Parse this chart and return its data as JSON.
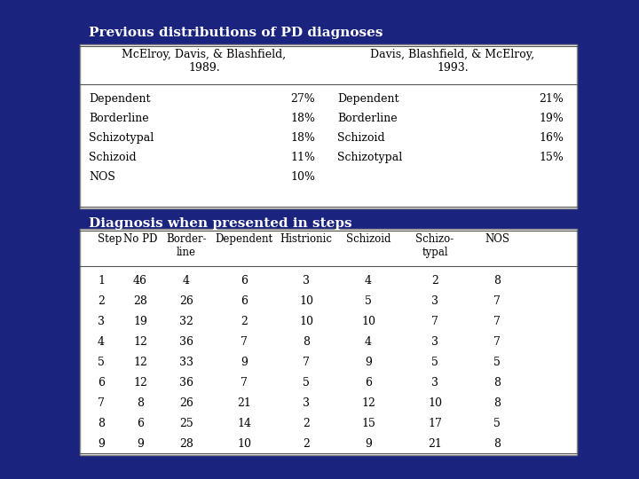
{
  "bg_color": "#1a237e",
  "title1": "Previous distributions of PD diagnoses",
  "title2": "Diagnosis when presented in steps",
  "table1": {
    "col1_header": "McElroy, Davis, & Blashfield,\n1989.",
    "col2_header": "Davis, Blashfield, & McElroy,\n1993.",
    "col1_rows": [
      [
        "Dependent",
        "27%"
      ],
      [
        "Borderline",
        "18%"
      ],
      [
        "Schizotypal",
        "18%"
      ],
      [
        "Schizoid",
        "11%"
      ],
      [
        "NOS",
        "10%"
      ]
    ],
    "col2_rows": [
      [
        "Dependent",
        "21%"
      ],
      [
        "Borderline",
        "19%"
      ],
      [
        "Schizoid",
        "16%"
      ],
      [
        "Schizotypal",
        "15%"
      ]
    ]
  },
  "table2": {
    "headers": [
      "Step",
      "No PD",
      "Border-\nline",
      "Dependent",
      "Histrionic",
      "Schizoid",
      "Schizo-\ntypal",
      "NOS"
    ],
    "rows": [
      [
        1,
        46,
        4,
        6,
        3,
        4,
        2,
        8
      ],
      [
        2,
        28,
        26,
        6,
        10,
        5,
        3,
        7
      ],
      [
        3,
        19,
        32,
        2,
        10,
        10,
        7,
        7
      ],
      [
        4,
        12,
        36,
        7,
        8,
        4,
        3,
        7
      ],
      [
        5,
        12,
        33,
        9,
        7,
        9,
        5,
        5
      ],
      [
        6,
        12,
        36,
        7,
        5,
        6,
        3,
        8
      ],
      [
        7,
        8,
        26,
        21,
        3,
        12,
        10,
        8
      ],
      [
        8,
        6,
        25,
        14,
        2,
        15,
        17,
        5
      ],
      [
        9,
        9,
        28,
        10,
        2,
        9,
        21,
        8
      ]
    ]
  },
  "text_color": "#000000",
  "table_bg": "#ffffff",
  "title_color": "#ffffff",
  "font_size": 9,
  "title_font_size": 11
}
